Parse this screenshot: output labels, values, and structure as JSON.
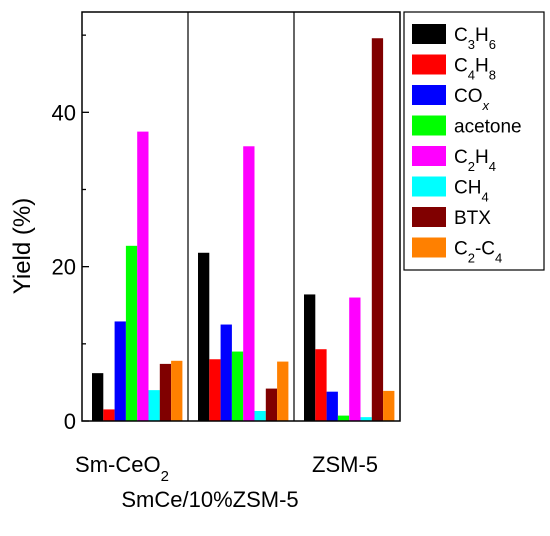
{
  "chart_data": {
    "type": "bar",
    "title": "",
    "xlabel": "",
    "ylabel": "Yield (%)",
    "ylim": [
      0,
      53
    ],
    "yticks": [
      0,
      20,
      40
    ],
    "grid": false,
    "legend_position": "top-right",
    "categories": [
      {
        "base": "Sm-CeO",
        "sub": "2",
        "rest": ""
      },
      {
        "base": "SmCe/10%ZSM-5",
        "sub": "",
        "rest": ""
      },
      {
        "base": "ZSM-5",
        "sub": "",
        "rest": ""
      }
    ],
    "series": [
      {
        "name": {
          "parts": [
            [
              "C",
              ""
            ],
            [
              "3",
              "sub"
            ],
            [
              "H",
              ""
            ],
            [
              "6",
              "sub"
            ]
          ]
        },
        "color": "#000000",
        "values": [
          6.2,
          21.8,
          16.4
        ]
      },
      {
        "name": {
          "parts": [
            [
              "C",
              ""
            ],
            [
              "4",
              "sub"
            ],
            [
              "H",
              ""
            ],
            [
              "8",
              "sub"
            ]
          ]
        },
        "color": "#ff0000",
        "values": [
          1.5,
          8.0,
          9.3
        ]
      },
      {
        "name": {
          "parts": [
            [
              "CO",
              ""
            ],
            [
              "x",
              "subi"
            ]
          ]
        },
        "color": "#0000ff",
        "values": [
          12.9,
          12.5,
          3.8
        ]
      },
      {
        "name": {
          "parts": [
            [
              "acetone",
              ""
            ]
          ]
        },
        "color": "#00ff00",
        "values": [
          22.7,
          9.0,
          0.7
        ]
      },
      {
        "name": {
          "parts": [
            [
              "C",
              ""
            ],
            [
              "2",
              "sub"
            ],
            [
              "H",
              ""
            ],
            [
              "4",
              "sub"
            ]
          ]
        },
        "color": "#ff00ff",
        "values": [
          37.5,
          35.6,
          16.0
        ]
      },
      {
        "name": {
          "parts": [
            [
              "CH",
              ""
            ],
            [
              "4",
              "sub"
            ]
          ]
        },
        "color": "#00ffff",
        "values": [
          4.0,
          1.3,
          0.5
        ]
      },
      {
        "name": {
          "parts": [
            [
              "BTX",
              ""
            ]
          ]
        },
        "color": "#800000",
        "values": [
          7.4,
          4.2,
          49.6
        ]
      },
      {
        "name": {
          "parts": [
            [
              "C",
              ""
            ],
            [
              "2",
              "sub"
            ],
            [
              "-C",
              ""
            ],
            [
              "4",
              "sub"
            ]
          ]
        },
        "color": "#ff8000",
        "values": [
          7.8,
          7.7,
          3.9
        ]
      }
    ]
  }
}
